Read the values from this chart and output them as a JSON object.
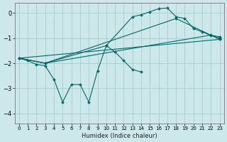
{
  "xlabel": "Humidex (Indice chaleur)",
  "bg_color": "#cce8ea",
  "grid_color": "#aacccc",
  "line_color": "#006868",
  "xlim": [
    -0.5,
    23.5
  ],
  "ylim": [
    -4.4,
    0.4
  ],
  "yticks": [
    0,
    -1,
    -2,
    -3,
    -4
  ],
  "xticks": [
    0,
    1,
    2,
    3,
    4,
    5,
    6,
    7,
    8,
    9,
    10,
    11,
    12,
    13,
    14,
    15,
    16,
    17,
    18,
    19,
    20,
    21,
    22,
    23
  ],
  "series": [
    {
      "x": [
        0,
        1,
        2,
        3,
        4,
        5,
        6,
        7,
        8,
        9,
        10,
        11,
        12,
        13,
        14
      ],
      "y": [
        -1.8,
        -1.9,
        -2.05,
        -2.1,
        -2.65,
        -3.55,
        -2.85,
        -2.85,
        -3.55,
        -2.3,
        -1.3,
        -1.55,
        -1.9,
        -2.25,
        -2.35
      ]
    },
    {
      "x": [
        0,
        3,
        10,
        13,
        14,
        15,
        16,
        17,
        18,
        19,
        20,
        21,
        22,
        23
      ],
      "y": [
        -1.8,
        -2.0,
        -1.3,
        -0.15,
        -0.07,
        0.05,
        0.17,
        0.2,
        -0.15,
        -0.22,
        -0.62,
        -0.75,
        -0.9,
        -1.0
      ]
    },
    {
      "x": [
        0,
        3,
        22,
        23
      ],
      "y": [
        -1.8,
        -2.0,
        -0.88,
        -0.95
      ]
    },
    {
      "x": [
        0,
        23
      ],
      "y": [
        -1.8,
        -1.05
      ]
    },
    {
      "x": [
        0,
        3,
        18,
        23
      ],
      "y": [
        -1.8,
        -2.0,
        -0.22,
        -1.05
      ]
    }
  ]
}
